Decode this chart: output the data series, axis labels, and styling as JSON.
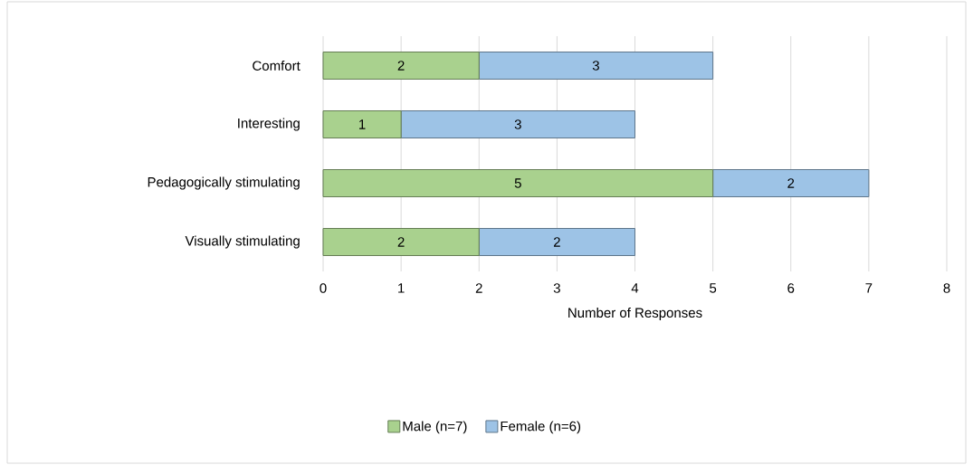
{
  "chart_data": {
    "type": "bar",
    "orientation": "horizontal",
    "stacked": true,
    "xlabel": "Number of Responses",
    "categories": [
      "Comfort",
      "Interesting",
      "Pedagogically stimulating",
      "Visually stimulating"
    ],
    "series": [
      {
        "name": "Male (n=7)",
        "color": "#a9d18e",
        "values": [
          2,
          1,
          5,
          2
        ]
      },
      {
        "name": "Female (n=6)",
        "color": "#9dc3e6",
        "values": [
          3,
          3,
          2,
          2
        ]
      }
    ],
    "xlim": [
      0,
      8
    ],
    "xticks": [
      0,
      1,
      2,
      3,
      4,
      5,
      6,
      7,
      8
    ],
    "grid": "x",
    "legend": "bottom",
    "data_labels": true
  }
}
